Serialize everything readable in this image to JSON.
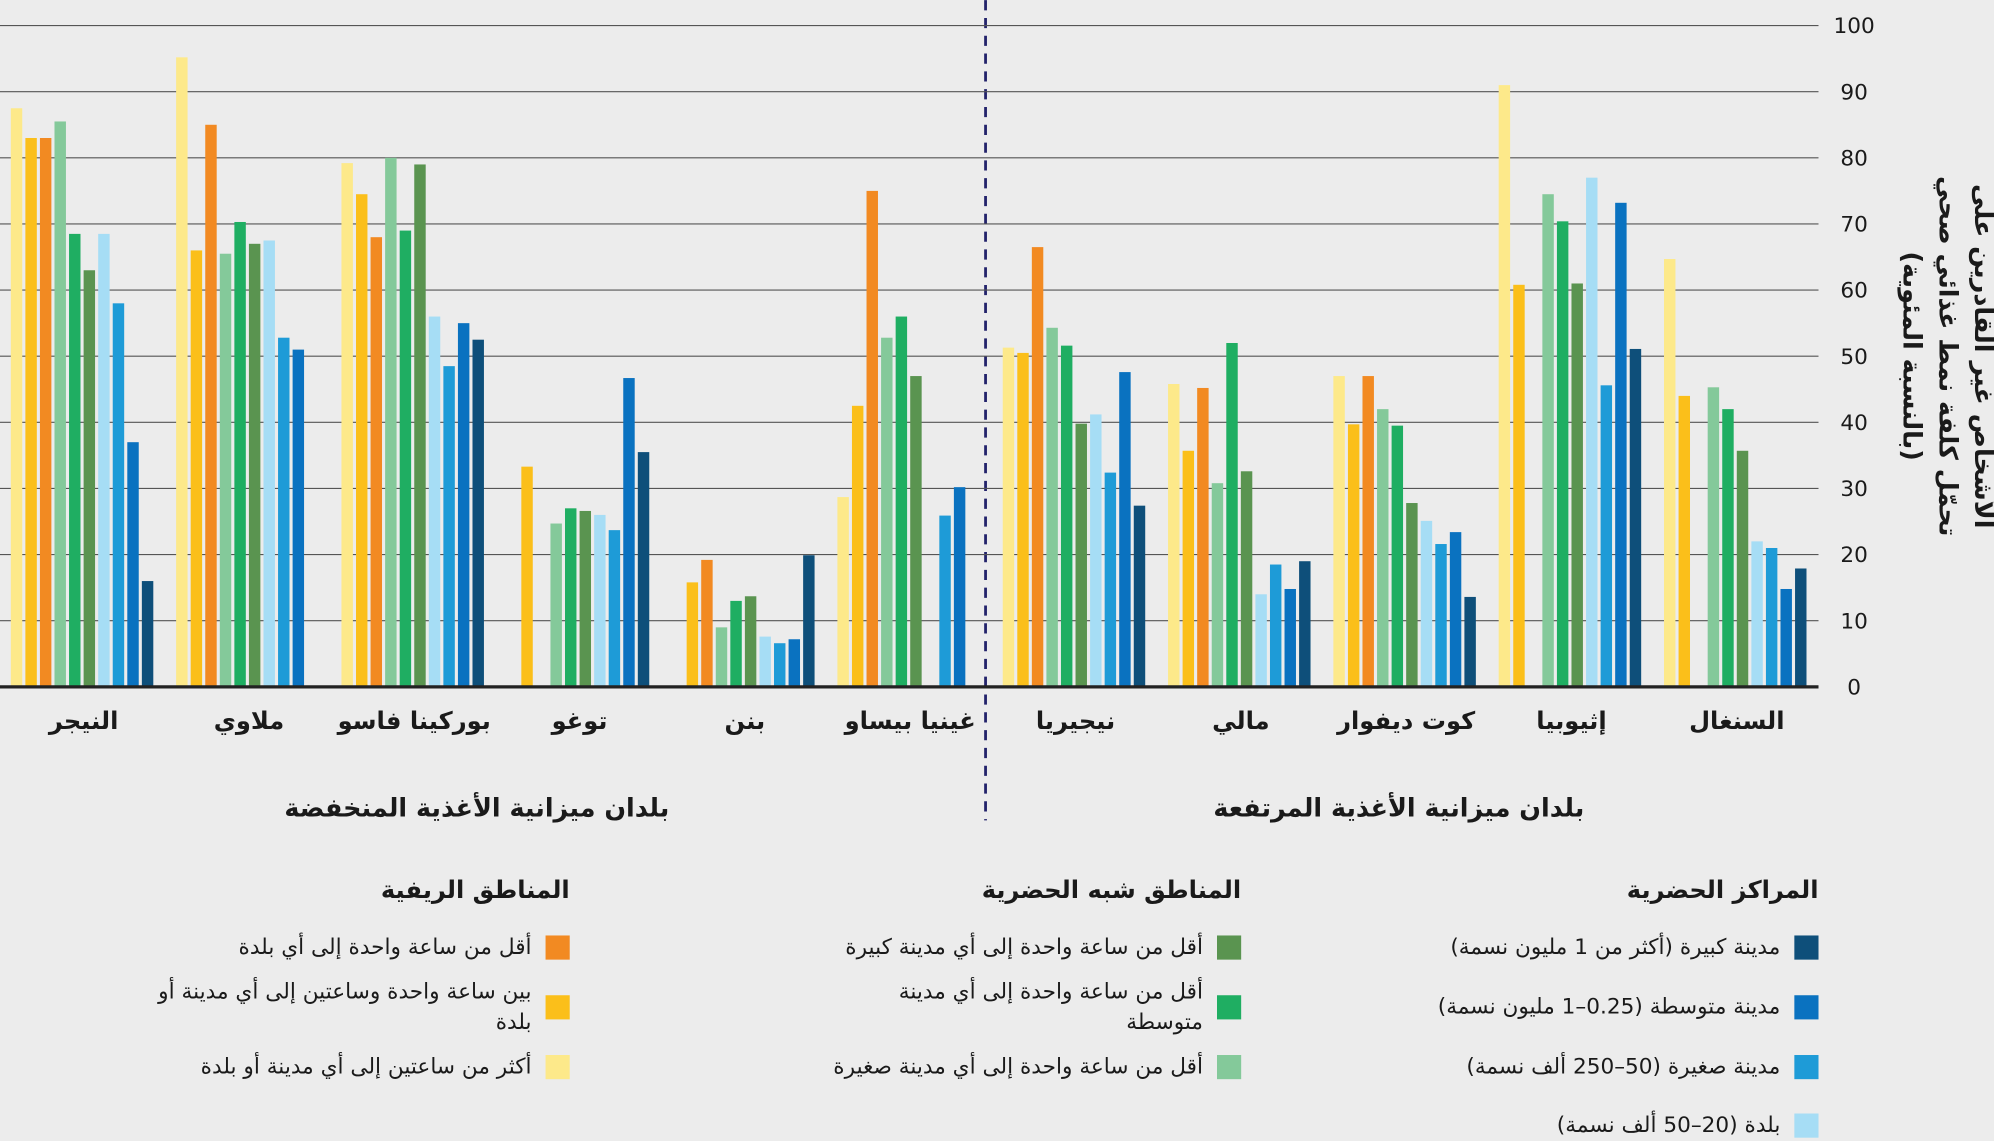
{
  "chart_data": {
    "type": "bar",
    "y_label": [
      "الأشخاص غير القادرين على",
      "تحمّل كلفة نمط غذائي صحي",
      "(بالنسبة المئوية)"
    ],
    "group_labels": [
      "بلدان ميزانية الأغذية المنخفضة",
      "بلدان ميزانية الأغذية المرتفعة"
    ],
    "legend_groups": [
      "المناطق الريفية",
      "المناطق شبه الحضرية",
      "المراكز الحضرية"
    ],
    "categories": [
      "النيجر",
      "ملاوي",
      "بوركينا فاسو",
      "توغو",
      "بنن",
      "غينيا بيساو",
      "نيجيريا",
      "مالي",
      "كوت ديفوار",
      "إثيوبيا",
      "السنغال"
    ],
    "ylim": [
      0,
      100
    ],
    "yticks": [
      0,
      10,
      20,
      30,
      40,
      50,
      60,
      70,
      80,
      90,
      100
    ],
    "grid": true,
    "series": [
      {
        "name": "أكثر من ساعتين إلى أي مدينة أو بلدة",
        "color": "#fde98a",
        "values": [
          87.5,
          95.2,
          79.2,
          null,
          null,
          28.7,
          51.3,
          45.8,
          47,
          91,
          64.7
        ]
      },
      {
        "name": "بين ساعة واحدة وساعتين إلى أي مدينة أو بلدة",
        "color": "#fbbf1a",
        "values": [
          83,
          66,
          74.5,
          33.3,
          15.8,
          42.5,
          50.5,
          35.7,
          39.7,
          60.8,
          44
        ]
      },
      {
        "name": "أقل من ساعة واحدة إلى أي بلدة",
        "color": "#f28a22",
        "values": [
          83,
          85,
          68,
          null,
          19.2,
          75,
          66.5,
          45.2,
          47,
          null,
          null
        ]
      },
      {
        "name": "أقل من ساعة واحدة إلى أي مدينة صغيرة",
        "color": "#84c99a",
        "values": [
          85.5,
          65.5,
          80,
          24.7,
          9,
          52.8,
          54.3,
          30.8,
          42,
          74.5,
          45.3
        ]
      },
      {
        "name": "أقل من ساعة واحدة إلى أي مدينة متوسطة",
        "color": "#1fae62",
        "values": [
          68.5,
          70.3,
          69,
          27,
          13,
          56,
          51.6,
          52,
          39.5,
          70.4,
          42
        ]
      },
      {
        "name": "أقل من ساعة واحدة إلى أي مدينة كبيرة",
        "color": "#5a9450",
        "values": [
          63,
          67,
          79,
          26.6,
          13.7,
          47,
          39.8,
          32.6,
          27.8,
          61,
          35.7
        ]
      },
      {
        "name": "بلدة (20–50 ألف نسمة)",
        "color": "#a6ddf5",
        "values": [
          68.5,
          67.5,
          56,
          26,
          7.6,
          null,
          41.2,
          14,
          25.1,
          77,
          22
        ]
      },
      {
        "name": "مدينة صغيرة (50–250 ألف نسمة)",
        "color": "#1e9bd7",
        "values": [
          58,
          52.8,
          48.5,
          23.7,
          6.6,
          25.9,
          32.4,
          18.5,
          21.6,
          45.6,
          21
        ]
      },
      {
        "name": "مدينة متوسطة (0.25–1 مليون نسمة)",
        "color": "#0a72c0",
        "values": [
          37,
          51,
          55,
          46.7,
          7.2,
          30.2,
          47.6,
          14.8,
          23.4,
          73.2,
          14.8
        ]
      },
      {
        "name": "مدينة كبيرة (أكثر من 1 مليون نسمة)",
        "color": "#0e4f7a",
        "values": [
          16,
          null,
          52.5,
          35.5,
          19.9,
          null,
          27.4,
          19,
          13.6,
          51.1,
          17.9
        ]
      }
    ]
  }
}
